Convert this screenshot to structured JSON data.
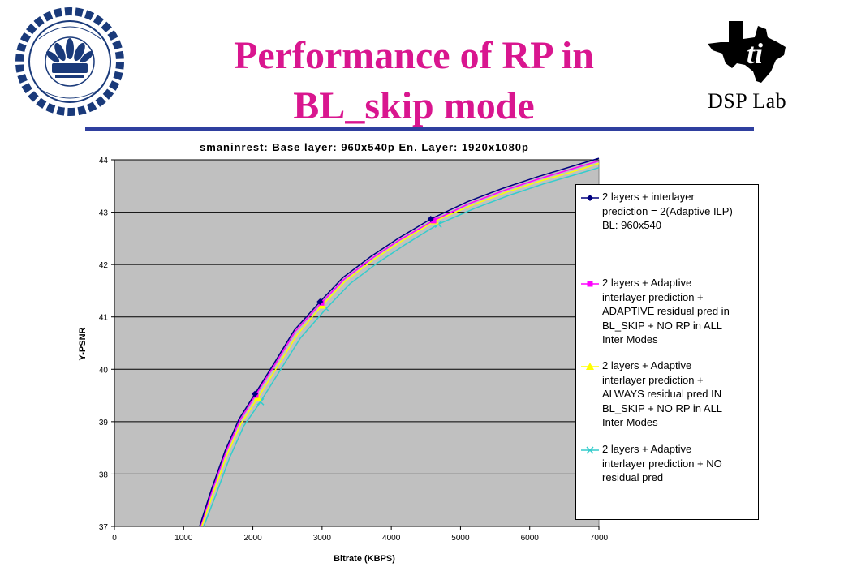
{
  "slide": {
    "title_line1": "Performance of RP in",
    "title_line2": "BL_skip mode",
    "logo_right_text": "DSP Lab"
  },
  "colors": {
    "title": "#d9168f",
    "rule": "#2f3f9f",
    "plot_bg": "#c0c0c0"
  },
  "chart_data": {
    "type": "line",
    "title": "smaninrest: Base layer: 960x540p En. Layer: 1920x1080p",
    "xlabel": "Bitrate (KBPS)",
    "ylabel": "Y-PSNR",
    "xlim": [
      0,
      7000
    ],
    "ylim": [
      37,
      44
    ],
    "x_ticks": [
      0,
      1000,
      2000,
      3000,
      4000,
      5000,
      6000,
      7000
    ],
    "y_ticks": [
      37,
      38,
      39,
      40,
      41,
      42,
      43,
      44
    ],
    "grid": "horizontal",
    "legend_position": "right",
    "series": [
      {
        "name": "2 layers + interlayer prediction = 2(Adaptive ILP) BL: 960x540",
        "legend_lines": [
          "2 layers + interlayer",
          "prediction = 2(Adaptive ILP)",
          "BL: 960x540"
        ],
        "color": "#00007f",
        "marker": "diamond",
        "x": [
          2030,
          2970,
          4570
        ],
        "y": [
          39.53,
          41.29,
          42.87
        ],
        "curve_x": [
          1230,
          1400,
          1600,
          1800,
          2030,
          2300,
          2600,
          2970,
          3300,
          3700,
          4100,
          4570,
          5100,
          5600,
          6100,
          6600,
          7000
        ],
        "curve_y": [
          37.0,
          37.7,
          38.45,
          39.05,
          39.53,
          40.1,
          40.75,
          41.29,
          41.75,
          42.15,
          42.5,
          42.87,
          43.2,
          43.45,
          43.67,
          43.87,
          44.03
        ]
      },
      {
        "name": "2 layers + Adaptive interlayer prediction + ADAPTIVE residual pred in BL_SKIP + NO RP in ALL Inter Modes",
        "legend_lines": [
          "2 layers + Adaptive",
          "interlayer prediction +",
          "ADAPTIVE residual pred in",
          "BL_SKIP + NO RP in ALL",
          "Inter Modes"
        ],
        "color": "#ff00ff",
        "marker": "square",
        "x": [
          2040,
          2990,
          4610
        ],
        "y": [
          39.51,
          41.27,
          42.84
        ],
        "curve_x": [
          1240,
          1410,
          1610,
          1810,
          2040,
          2310,
          2610,
          2990,
          3320,
          3720,
          4120,
          4610,
          5120,
          5620,
          6120,
          6620,
          7000
        ],
        "curve_y": [
          37.0,
          37.68,
          38.42,
          39.02,
          39.51,
          40.07,
          40.72,
          41.27,
          41.72,
          42.12,
          42.47,
          42.84,
          43.16,
          43.41,
          43.63,
          43.83,
          43.98
        ]
      },
      {
        "name": "2 layers + Adaptive interlayer prediction + ALWAYS residual pred IN BL_SKIP + NO RP in ALL Inter Modes",
        "legend_lines": [
          "2 layers + Adaptive",
          "interlayer prediction +",
          "ALWAYS residual pred IN",
          "BL_SKIP + NO RP in ALL",
          "Inter Modes"
        ],
        "color": "#ffff00",
        "marker": "triangle",
        "x": [
          2070,
          3000,
          4630
        ],
        "y": [
          39.45,
          41.22,
          42.83
        ],
        "curve_x": [
          1260,
          1430,
          1630,
          1830,
          2070,
          2340,
          2640,
          3000,
          3340,
          3740,
          4140,
          4630,
          5140,
          5640,
          6140,
          6640,
          7000
        ],
        "curve_y": [
          37.0,
          37.64,
          38.38,
          38.97,
          39.45,
          40.02,
          40.66,
          41.22,
          41.69,
          42.09,
          42.44,
          42.83,
          43.12,
          43.37,
          43.59,
          43.78,
          43.93
        ]
      },
      {
        "name": "2 layers + Adaptive interlayer prediction + NO residual pred",
        "legend_lines": [
          "2 layers + Adaptive",
          "interlayer prediction + NO",
          "residual pred"
        ],
        "color": "#33cccc",
        "marker": "x",
        "x": [
          2110,
          3060,
          4680
        ],
        "y": [
          39.38,
          41.16,
          42.77
        ],
        "curve_x": [
          1290,
          1460,
          1660,
          1870,
          2110,
          2380,
          2690,
          3060,
          3400,
          3800,
          4200,
          4680,
          5200,
          5700,
          6200,
          6700,
          7000
        ],
        "curve_y": [
          37.0,
          37.58,
          38.3,
          38.92,
          39.38,
          39.95,
          40.6,
          41.16,
          41.63,
          42.03,
          42.38,
          42.77,
          43.07,
          43.32,
          43.54,
          43.73,
          43.85
        ]
      }
    ]
  }
}
